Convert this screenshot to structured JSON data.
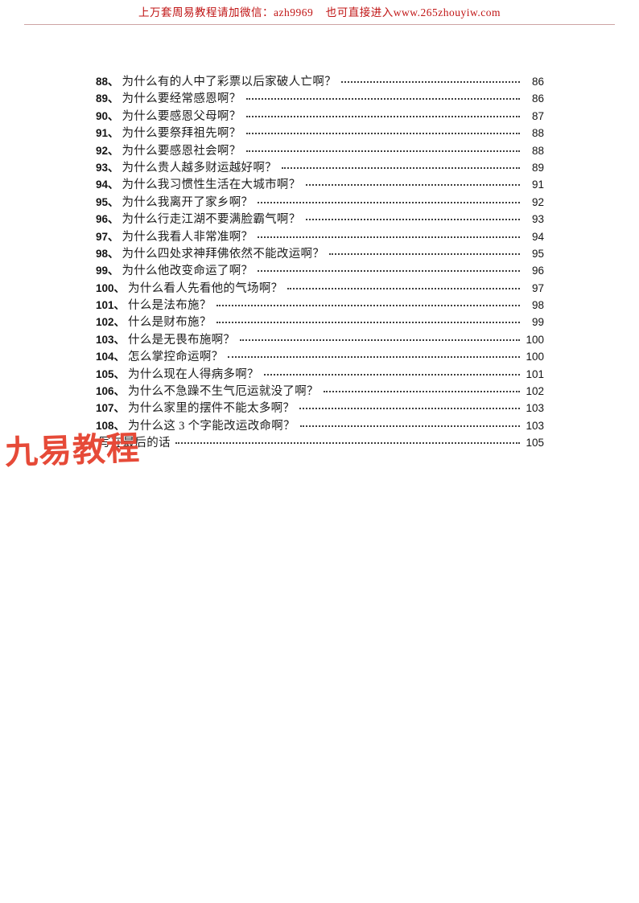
{
  "colors": {
    "page_background": "#ffffff",
    "header_text": "#c01414",
    "header_rule": "#a55a5a",
    "toc_text": "#1c1c1c",
    "leader_dots": "#3d3d3d",
    "watermark_red": "#e64a38"
  },
  "header": {
    "notice": "上万套周易教程请加微信：azh9969    也可直接进入www.265zhouyiw.com"
  },
  "watermark": {
    "text": "九易教程"
  },
  "toc": {
    "entries": [
      {
        "num": "88、",
        "title": "为什么有的人中了彩票以后家破人亡啊？",
        "page": "86"
      },
      {
        "num": "89、",
        "title": "为什么要经常感恩啊？",
        "page": "86"
      },
      {
        "num": "90、",
        "title": "为什么要感恩父母啊？",
        "page": "87"
      },
      {
        "num": "91、",
        "title": "为什么要祭拜祖先啊？",
        "page": "88"
      },
      {
        "num": "92、",
        "title": "为什么要感恩社会啊？",
        "page": "88"
      },
      {
        "num": "93、",
        "title": "为什么贵人越多财运越好啊？",
        "page": "89"
      },
      {
        "num": "94、",
        "title": "为什么我习惯性生活在大城市啊？",
        "page": "91"
      },
      {
        "num": "95、",
        "title": "为什么我离开了家乡啊？",
        "page": "92"
      },
      {
        "num": "96、",
        "title": "为什么行走江湖不要满脸霸气啊？",
        "page": "93"
      },
      {
        "num": "97、",
        "title": "为什么我看人非常准啊？",
        "page": "94"
      },
      {
        "num": "98、",
        "title": "为什么四处求神拜佛依然不能改运啊？",
        "page": "95"
      },
      {
        "num": "99、",
        "title": "为什么他改变命运了啊？",
        "page": "96"
      },
      {
        "num": "100、",
        "title": "为什么看人先看他的气场啊？",
        "page": "97"
      },
      {
        "num": "101、",
        "title": "什么是法布施？",
        "page": "98"
      },
      {
        "num": "102、",
        "title": "什么是财布施？",
        "page": "99"
      },
      {
        "num": "103、",
        "title": "什么是无畏布施啊？",
        "page": "100"
      },
      {
        "num": "104、",
        "title": "怎么掌控命运啊？",
        "page": "100"
      },
      {
        "num": "105、",
        "title": "为什么现在人得病多啊？",
        "page": "101"
      },
      {
        "num": "106、",
        "title": "为什么不急躁不生气厄运就没了啊？",
        "page": "102"
      },
      {
        "num": "107、",
        "title": "为什么家里的摆件不能太多啊？",
        "page": "103"
      },
      {
        "num": "108、",
        "title": "为什么这 3 个字能改运改命啊？",
        "page": "103"
      },
      {
        "num": "",
        "title": "写在最后的话",
        "page": "105"
      }
    ]
  }
}
